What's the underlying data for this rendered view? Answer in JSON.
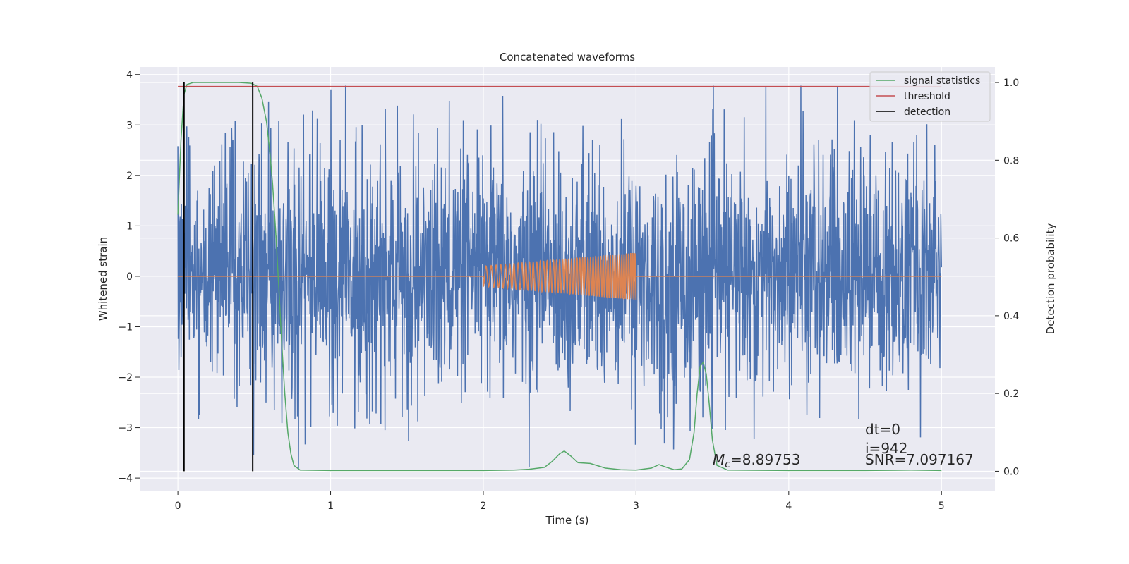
{
  "chart_data": {
    "type": "line",
    "title": "Concatenated waveforms",
    "xlabel": "Time (s)",
    "ylabel": "Whitened strain",
    "y2label": "Detection probability",
    "xlim": [
      -0.25,
      5.35
    ],
    "ylim": [
      -4.25,
      4.15
    ],
    "y2lim": [
      -0.05,
      1.04
    ],
    "xticks": [
      0,
      1,
      2,
      3,
      4,
      5
    ],
    "yticks": [
      -4,
      -3,
      -2,
      -1,
      0,
      1,
      2,
      3,
      4
    ],
    "y2ticks": [
      0.0,
      0.2,
      0.4,
      0.6,
      0.8,
      1.0
    ],
    "xtick_labels": [
      "0",
      "1",
      "2",
      "3",
      "4",
      "5"
    ],
    "ytick_labels": [
      "−4",
      "−3",
      "−2",
      "−1",
      "0",
      "1",
      "2",
      "3",
      "4"
    ],
    "y2tick_labels": [
      "0.0",
      "0.2",
      "0.4",
      "0.6",
      "0.8",
      "1.0"
    ],
    "grid": true,
    "legend_position": "top-right",
    "colors": {
      "background": "#eaeaf2",
      "grid": "#ffffff",
      "strain": "#4c72b0",
      "template": "#dd8452",
      "signal_statistics": "#55a868",
      "threshold": "#c44e52",
      "detection": "#000000"
    },
    "series": [
      {
        "name": "",
        "axis": "left",
        "description_kind": "noise",
        "x_range": [
          0,
          5
        ],
        "typical_amplitude": 1.2,
        "peak_max": 3.78,
        "peak_min": -3.9
      },
      {
        "name": "",
        "axis": "left",
        "description_kind": "chirp",
        "x_range": [
          2.0,
          3.0
        ],
        "amp_start": 0.2,
        "amp_end": 0.47
      },
      {
        "name": "signal statistics",
        "axis": "right",
        "x": [
          0.0,
          0.02,
          0.04,
          0.06,
          0.1,
          0.2,
          0.3,
          0.4,
          0.48,
          0.52,
          0.55,
          0.58,
          0.6,
          0.62,
          0.64,
          0.66,
          0.68,
          0.7,
          0.72,
          0.74,
          0.76,
          0.8,
          1.0,
          1.5,
          2.0,
          2.2,
          2.3,
          2.4,
          2.45,
          2.5,
          2.53,
          2.57,
          2.62,
          2.7,
          2.8,
          2.9,
          3.0,
          3.1,
          3.15,
          3.2,
          3.25,
          3.3,
          3.35,
          3.38,
          3.4,
          3.42,
          3.44,
          3.46,
          3.48,
          3.5,
          3.53,
          3.6,
          4.0,
          4.5,
          4.8,
          5.0
        ],
        "y": [
          0.66,
          0.85,
          0.97,
          0.995,
          1.0,
          1.0,
          1.0,
          1.0,
          0.998,
          0.99,
          0.96,
          0.9,
          0.83,
          0.74,
          0.62,
          0.48,
          0.33,
          0.2,
          0.1,
          0.045,
          0.015,
          0.003,
          0.002,
          0.002,
          0.002,
          0.003,
          0.005,
          0.01,
          0.025,
          0.045,
          0.052,
          0.04,
          0.022,
          0.02,
          0.008,
          0.004,
          0.003,
          0.008,
          0.017,
          0.01,
          0.004,
          0.006,
          0.03,
          0.1,
          0.2,
          0.27,
          0.28,
          0.25,
          0.17,
          0.08,
          0.015,
          0.003,
          0.002,
          0.002,
          0.003,
          0.002
        ]
      },
      {
        "name": "threshold",
        "axis": "right",
        "x": [
          0,
          5
        ],
        "y": [
          0.99,
          0.99
        ]
      },
      {
        "name": "detection",
        "axis": "right",
        "x_positions": [
          0.04,
          0.49
        ],
        "y_range": [
          0,
          1
        ]
      }
    ],
    "annotations": {
      "mc_symbol": "M",
      "mc_sub": "c",
      "mc_value": "=8.89753",
      "dt": "dt=0",
      "index": "i=942",
      "snr": "SNR=7.097167"
    }
  }
}
